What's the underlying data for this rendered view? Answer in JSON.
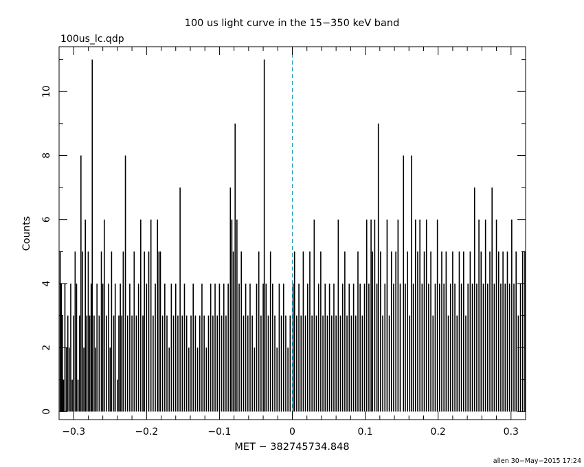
{
  "chart_data": {
    "type": "bar",
    "title": "100 us light curve in the 15−350 keV band",
    "file_label": "100us_lc.qdp",
    "xlabel": "MET − 382745734.848",
    "ylabel": "Counts",
    "footer": "allen 30−May−2015 17:24",
    "xlim": [
      -0.32,
      0.32
    ],
    "ylim": [
      -0.25,
      11.4
    ],
    "x_ticks": [
      -0.3,
      -0.2,
      -0.1,
      0,
      0.1,
      0.2,
      0.3
    ],
    "x_tick_labels": [
      "−0.3",
      "−0.2",
      "−0.1",
      "0",
      "0.1",
      "0.2",
      "0.3"
    ],
    "y_ticks": [
      0,
      2,
      4,
      6,
      8,
      10
    ],
    "y_tick_labels": [
      "0",
      "2",
      "4",
      "6",
      "8",
      "10"
    ],
    "bin_width": 0.0001,
    "trigger_line_x": 0,
    "series": [
      {
        "values": [
          {
            "x": -0.3185,
            "y": 5
          },
          {
            "x": -0.317,
            "y": 4
          },
          {
            "x": -0.3155,
            "y": 3
          },
          {
            "x": -0.314,
            "y": 1
          },
          {
            "x": -0.312,
            "y": 4
          },
          {
            "x": -0.31,
            "y": 2
          },
          {
            "x": -0.308,
            "y": 3
          },
          {
            "x": -0.306,
            "y": 2
          },
          {
            "x": -0.304,
            "y": 4
          },
          {
            "x": -0.302,
            "y": 1
          },
          {
            "x": -0.3,
            "y": 3
          },
          {
            "x": -0.298,
            "y": 5
          },
          {
            "x": -0.296,
            "y": 4
          },
          {
            "x": -0.294,
            "y": 1
          },
          {
            "x": -0.292,
            "y": 3
          },
          {
            "x": -0.29,
            "y": 8
          },
          {
            "x": -0.288,
            "y": 5
          },
          {
            "x": -0.286,
            "y": 2
          },
          {
            "x": -0.284,
            "y": 6
          },
          {
            "x": -0.282,
            "y": 3
          },
          {
            "x": -0.28,
            "y": 5
          },
          {
            "x": -0.278,
            "y": 3
          },
          {
            "x": -0.276,
            "y": 4
          },
          {
            "x": -0.2745,
            "y": 11
          },
          {
            "x": -0.272,
            "y": 3
          },
          {
            "x": -0.27,
            "y": 2
          },
          {
            "x": -0.268,
            "y": 4
          },
          {
            "x": -0.265,
            "y": 3
          },
          {
            "x": -0.262,
            "y": 5
          },
          {
            "x": -0.26,
            "y": 4
          },
          {
            "x": -0.258,
            "y": 6
          },
          {
            "x": -0.255,
            "y": 3
          },
          {
            "x": -0.252,
            "y": 4
          },
          {
            "x": -0.25,
            "y": 2
          },
          {
            "x": -0.248,
            "y": 5
          },
          {
            "x": -0.245,
            "y": 3
          },
          {
            "x": -0.243,
            "y": 4
          },
          {
            "x": -0.24,
            "y": 1
          },
          {
            "x": -0.238,
            "y": 3
          },
          {
            "x": -0.236,
            "y": 4
          },
          {
            "x": -0.234,
            "y": 3
          },
          {
            "x": -0.232,
            "y": 5
          },
          {
            "x": -0.229,
            "y": 8
          },
          {
            "x": -0.226,
            "y": 3
          },
          {
            "x": -0.223,
            "y": 4
          },
          {
            "x": -0.22,
            "y": 3
          },
          {
            "x": -0.217,
            "y": 5
          },
          {
            "x": -0.214,
            "y": 3
          },
          {
            "x": -0.211,
            "y": 4
          },
          {
            "x": -0.208,
            "y": 6
          },
          {
            "x": -0.205,
            "y": 3
          },
          {
            "x": -0.203,
            "y": 5
          },
          {
            "x": -0.2,
            "y": 4
          },
          {
            "x": -0.197,
            "y": 5
          },
          {
            "x": -0.194,
            "y": 6
          },
          {
            "x": -0.191,
            "y": 3
          },
          {
            "x": -0.188,
            "y": 4
          },
          {
            "x": -0.185,
            "y": 6
          },
          {
            "x": -0.183,
            "y": 5
          },
          {
            "x": -0.181,
            "y": 5
          },
          {
            "x": -0.178,
            "y": 3
          },
          {
            "x": -0.175,
            "y": 4
          },
          {
            "x": -0.172,
            "y": 3
          },
          {
            "x": -0.169,
            "y": 2
          },
          {
            "x": -0.166,
            "y": 4
          },
          {
            "x": -0.163,
            "y": 3
          },
          {
            "x": -0.16,
            "y": 4
          },
          {
            "x": -0.157,
            "y": 3
          },
          {
            "x": -0.154,
            "y": 7
          },
          {
            "x": -0.151,
            "y": 3
          },
          {
            "x": -0.148,
            "y": 4
          },
          {
            "x": -0.145,
            "y": 3
          },
          {
            "x": -0.142,
            "y": 2
          },
          {
            "x": -0.139,
            "y": 3
          },
          {
            "x": -0.136,
            "y": 4
          },
          {
            "x": -0.133,
            "y": 3
          },
          {
            "x": -0.13,
            "y": 2
          },
          {
            "x": -0.127,
            "y": 3
          },
          {
            "x": -0.124,
            "y": 4
          },
          {
            "x": -0.121,
            "y": 3
          },
          {
            "x": -0.118,
            "y": 2
          },
          {
            "x": -0.115,
            "y": 3
          },
          {
            "x": -0.112,
            "y": 4
          },
          {
            "x": -0.109,
            "y": 3
          },
          {
            "x": -0.106,
            "y": 4
          },
          {
            "x": -0.103,
            "y": 3
          },
          {
            "x": -0.1,
            "y": 4
          },
          {
            "x": -0.097,
            "y": 3
          },
          {
            "x": -0.094,
            "y": 4
          },
          {
            "x": -0.091,
            "y": 3
          },
          {
            "x": -0.088,
            "y": 4
          },
          {
            "x": -0.085,
            "y": 7
          },
          {
            "x": -0.083,
            "y": 6
          },
          {
            "x": -0.081,
            "y": 5
          },
          {
            "x": -0.0785,
            "y": 9
          },
          {
            "x": -0.076,
            "y": 6
          },
          {
            "x": -0.073,
            "y": 4
          },
          {
            "x": -0.07,
            "y": 5
          },
          {
            "x": -0.067,
            "y": 3
          },
          {
            "x": -0.064,
            "y": 4
          },
          {
            "x": -0.061,
            "y": 3
          },
          {
            "x": -0.058,
            "y": 4
          },
          {
            "x": -0.055,
            "y": 3
          },
          {
            "x": -0.052,
            "y": 2
          },
          {
            "x": -0.049,
            "y": 4
          },
          {
            "x": -0.046,
            "y": 5
          },
          {
            "x": -0.043,
            "y": 3
          },
          {
            "x": -0.04,
            "y": 4
          },
          {
            "x": -0.0385,
            "y": 11
          },
          {
            "x": -0.036,
            "y": 4
          },
          {
            "x": -0.033,
            "y": 3
          },
          {
            "x": -0.03,
            "y": 5
          },
          {
            "x": -0.027,
            "y": 4
          },
          {
            "x": -0.024,
            "y": 3
          },
          {
            "x": -0.021,
            "y": 2
          },
          {
            "x": -0.018,
            "y": 4
          },
          {
            "x": -0.015,
            "y": 3
          },
          {
            "x": -0.012,
            "y": 4
          },
          {
            "x": -0.009,
            "y": 3
          },
          {
            "x": -0.006,
            "y": 2
          },
          {
            "x": -0.003,
            "y": 3
          },
          {
            "x": 0.001,
            "y": 4
          },
          {
            "x": 0.003,
            "y": 5
          },
          {
            "x": 0.006,
            "y": 3
          },
          {
            "x": 0.009,
            "y": 4
          },
          {
            "x": 0.012,
            "y": 3
          },
          {
            "x": 0.015,
            "y": 5
          },
          {
            "x": 0.018,
            "y": 3
          },
          {
            "x": 0.021,
            "y": 4
          },
          {
            "x": 0.024,
            "y": 5
          },
          {
            "x": 0.027,
            "y": 3
          },
          {
            "x": 0.03,
            "y": 6
          },
          {
            "x": 0.033,
            "y": 3
          },
          {
            "x": 0.036,
            "y": 4
          },
          {
            "x": 0.039,
            "y": 5
          },
          {
            "x": 0.042,
            "y": 3
          },
          {
            "x": 0.045,
            "y": 4
          },
          {
            "x": 0.048,
            "y": 3
          },
          {
            "x": 0.051,
            "y": 4
          },
          {
            "x": 0.054,
            "y": 3
          },
          {
            "x": 0.057,
            "y": 4
          },
          {
            "x": 0.06,
            "y": 3
          },
          {
            "x": 0.063,
            "y": 6
          },
          {
            "x": 0.066,
            "y": 3
          },
          {
            "x": 0.069,
            "y": 4
          },
          {
            "x": 0.072,
            "y": 5
          },
          {
            "x": 0.075,
            "y": 3
          },
          {
            "x": 0.078,
            "y": 4
          },
          {
            "x": 0.081,
            "y": 3
          },
          {
            "x": 0.084,
            "y": 4
          },
          {
            "x": 0.087,
            "y": 3
          },
          {
            "x": 0.09,
            "y": 5
          },
          {
            "x": 0.093,
            "y": 4
          },
          {
            "x": 0.096,
            "y": 3
          },
          {
            "x": 0.099,
            "y": 4
          },
          {
            "x": 0.102,
            "y": 6
          },
          {
            "x": 0.105,
            "y": 4
          },
          {
            "x": 0.108,
            "y": 6
          },
          {
            "x": 0.11,
            "y": 5
          },
          {
            "x": 0.113,
            "y": 6
          },
          {
            "x": 0.116,
            "y": 4
          },
          {
            "x": 0.118,
            "y": 9
          },
          {
            "x": 0.121,
            "y": 5
          },
          {
            "x": 0.124,
            "y": 3
          },
          {
            "x": 0.127,
            "y": 4
          },
          {
            "x": 0.13,
            "y": 6
          },
          {
            "x": 0.133,
            "y": 3
          },
          {
            "x": 0.136,
            "y": 5
          },
          {
            "x": 0.139,
            "y": 4
          },
          {
            "x": 0.142,
            "y": 5
          },
          {
            "x": 0.145,
            "y": 6
          },
          {
            "x": 0.148,
            "y": 4
          },
          {
            "x": 0.1525,
            "y": 8
          },
          {
            "x": 0.155,
            "y": 4
          },
          {
            "x": 0.158,
            "y": 5
          },
          {
            "x": 0.161,
            "y": 3
          },
          {
            "x": 0.1635,
            "y": 8
          },
          {
            "x": 0.166,
            "y": 4
          },
          {
            "x": 0.169,
            "y": 6
          },
          {
            "x": 0.172,
            "y": 5
          },
          {
            "x": 0.175,
            "y": 6
          },
          {
            "x": 0.178,
            "y": 4
          },
          {
            "x": 0.181,
            "y": 5
          },
          {
            "x": 0.184,
            "y": 6
          },
          {
            "x": 0.187,
            "y": 4
          },
          {
            "x": 0.19,
            "y": 5
          },
          {
            "x": 0.193,
            "y": 3
          },
          {
            "x": 0.196,
            "y": 4
          },
          {
            "x": 0.199,
            "y": 6
          },
          {
            "x": 0.202,
            "y": 4
          },
          {
            "x": 0.205,
            "y": 5
          },
          {
            "x": 0.208,
            "y": 4
          },
          {
            "x": 0.211,
            "y": 5
          },
          {
            "x": 0.214,
            "y": 3
          },
          {
            "x": 0.217,
            "y": 4
          },
          {
            "x": 0.22,
            "y": 5
          },
          {
            "x": 0.223,
            "y": 4
          },
          {
            "x": 0.226,
            "y": 3
          },
          {
            "x": 0.229,
            "y": 5
          },
          {
            "x": 0.232,
            "y": 4
          },
          {
            "x": 0.235,
            "y": 5
          },
          {
            "x": 0.238,
            "y": 3
          },
          {
            "x": 0.241,
            "y": 4
          },
          {
            "x": 0.244,
            "y": 5
          },
          {
            "x": 0.247,
            "y": 4
          },
          {
            "x": 0.25,
            "y": 7
          },
          {
            "x": 0.253,
            "y": 4
          },
          {
            "x": 0.256,
            "y": 6
          },
          {
            "x": 0.259,
            "y": 5
          },
          {
            "x": 0.262,
            "y": 4
          },
          {
            "x": 0.265,
            "y": 6
          },
          {
            "x": 0.268,
            "y": 4
          },
          {
            "x": 0.271,
            "y": 5
          },
          {
            "x": 0.274,
            "y": 7
          },
          {
            "x": 0.277,
            "y": 4
          },
          {
            "x": 0.28,
            "y": 6
          },
          {
            "x": 0.283,
            "y": 5
          },
          {
            "x": 0.286,
            "y": 4
          },
          {
            "x": 0.289,
            "y": 5
          },
          {
            "x": 0.292,
            "y": 4
          },
          {
            "x": 0.295,
            "y": 5
          },
          {
            "x": 0.298,
            "y": 4
          },
          {
            "x": 0.301,
            "y": 6
          },
          {
            "x": 0.304,
            "y": 4
          },
          {
            "x": 0.307,
            "y": 5
          },
          {
            "x": 0.31,
            "y": 3
          },
          {
            "x": 0.313,
            "y": 4
          },
          {
            "x": 0.316,
            "y": 5
          },
          {
            "x": 0.319,
            "y": 5
          }
        ]
      }
    ]
  },
  "colors": {
    "background": "#ffffff",
    "bars": "#000000",
    "trigger_line": "#1a9bbf"
  }
}
